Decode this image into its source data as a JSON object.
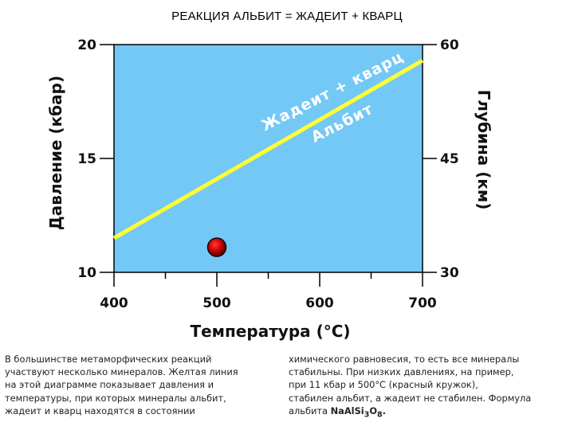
{
  "page": {
    "title": "РЕАКЦИЯ АЛЬБИТ = ЖАДЕИТ + КВАРЦ"
  },
  "chart_data": {
    "type": "line",
    "title": "",
    "xlabel": "Температура (°C)",
    "ylabel_left": "Давление (кбар)",
    "ylabel_right": "Глубина (км)",
    "xlim": [
      400,
      700
    ],
    "ylim": [
      10,
      20
    ],
    "ylim_right": [
      30,
      60
    ],
    "x_ticks": [
      400,
      500,
      600,
      700
    ],
    "x_minor_ticks": [
      450,
      550,
      650
    ],
    "y_ticks": [
      10,
      15,
      20
    ],
    "y_right_ticks": [
      30,
      45,
      60
    ],
    "grid": false,
    "colors": {
      "plot_background": "#74c8f5",
      "line": "#ffff33",
      "point": "#cc0000"
    },
    "series": [
      {
        "type": "line",
        "x": [
          400,
          700
        ],
        "y": [
          11.5,
          19.3
        ]
      },
      {
        "type": "scatter",
        "x": [
          500
        ],
        "y": [
          11.1
        ]
      }
    ],
    "annotations": [
      {
        "text": "Жадеит + кварц"
      },
      {
        "text": "Альбит"
      }
    ]
  },
  "caption": {
    "left": "В большинстве метаморфических реакций\nучаствуют несколько минералов. Желтая линия\nна этой диаграмме показывает давления и\nтемпературы, при которых минералы альбит,\nжадеит и кварц находятся в состоянии",
    "right_text": "химического равновесия, то есть все минералы\nстабильны. При низких давлениях, на пример,\nпри 11 кбар и 500°C (красный кружок),\nстабилен альбит, а жадеит не стабилен. Формула\nальбита ",
    "formula_base": "NaAlSi",
    "formula_sub1": "3",
    "formula_mid": "O",
    "formula_sub2": "8",
    "formula_end": "."
  }
}
